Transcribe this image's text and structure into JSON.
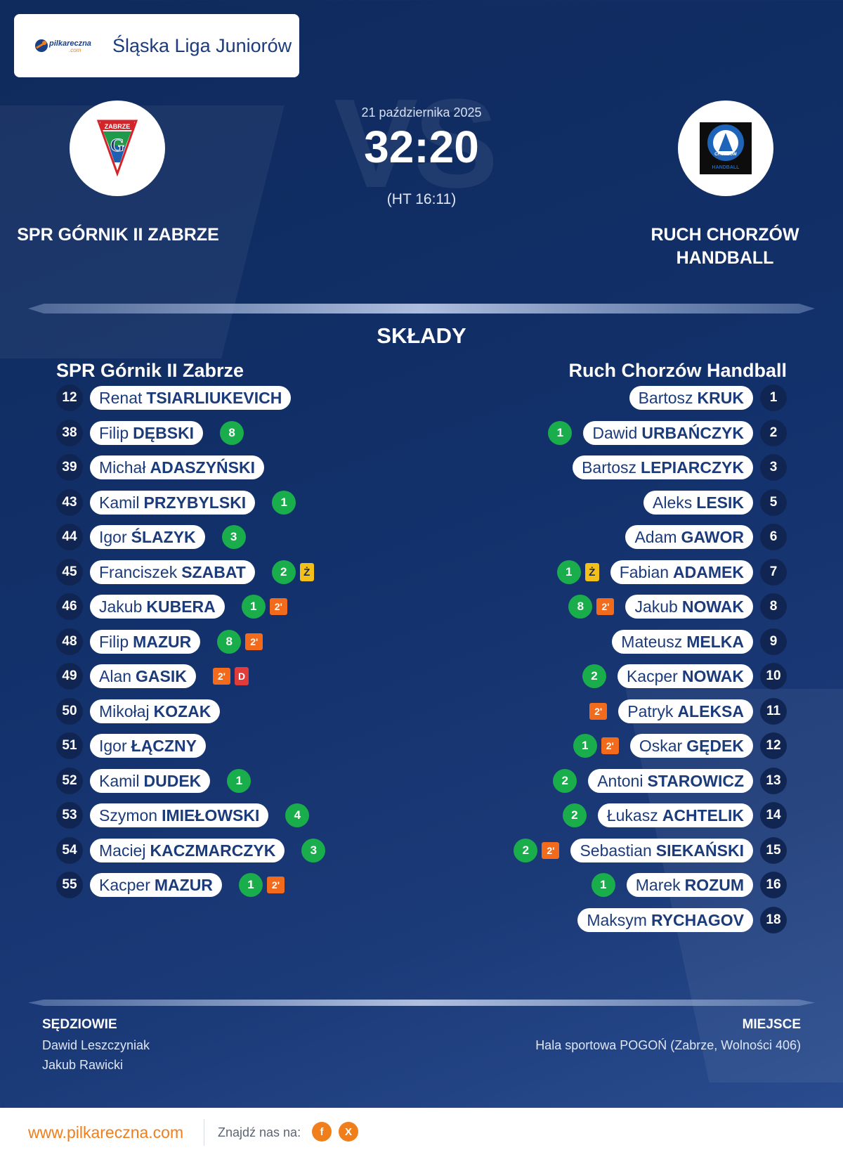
{
  "header": {
    "brand_text": "pilkareczna",
    "brand_suffix": ".com",
    "league": "Śląska Liga Juniorów"
  },
  "match": {
    "date": "21 października 2025",
    "score": "32:20",
    "halftime": "(HT 16:11)",
    "vs_watermark": "VS",
    "home_name": "SPR GÓRNIK II ZABRZE",
    "away_name": "RUCH CHORZÓW HANDBALL"
  },
  "lineups": {
    "title": "SKŁADY",
    "home_team": "SPR Górnik II Zabrze",
    "away_team": "Ruch Chorzów Handball",
    "home_players": [
      {
        "number": "12",
        "first": "Renat",
        "last": "TSIARLIUKEVICH",
        "goals": "",
        "penalty": "",
        "card": ""
      },
      {
        "number": "38",
        "first": "Filip",
        "last": "DĘBSKI",
        "goals": "8",
        "penalty": "",
        "card": ""
      },
      {
        "number": "39",
        "first": "Michał",
        "last": "ADASZYŃSKI",
        "goals": "",
        "penalty": "",
        "card": ""
      },
      {
        "number": "43",
        "first": "Kamil",
        "last": "PRZYBYLSKI",
        "goals": "1",
        "penalty": "",
        "card": ""
      },
      {
        "number": "44",
        "first": "Igor",
        "last": "ŚLAZYK",
        "goals": "3",
        "penalty": "",
        "card": ""
      },
      {
        "number": "45",
        "first": "Franciszek",
        "last": "SZABAT",
        "goals": "2",
        "penalty": "",
        "card": "Ż"
      },
      {
        "number": "46",
        "first": "Jakub",
        "last": "KUBERA",
        "goals": "1",
        "penalty": "2'",
        "card": ""
      },
      {
        "number": "48",
        "first": "Filip",
        "last": "MAZUR",
        "goals": "8",
        "penalty": "2'",
        "card": ""
      },
      {
        "number": "49",
        "first": "Alan",
        "last": "GASIK",
        "goals": "",
        "penalty": "2'",
        "card": "D"
      },
      {
        "number": "50",
        "first": "Mikołaj",
        "last": "KOZAK",
        "goals": "",
        "penalty": "",
        "card": ""
      },
      {
        "number": "51",
        "first": "Igor",
        "last": "ŁĄCZNY",
        "goals": "",
        "penalty": "",
        "card": ""
      },
      {
        "number": "52",
        "first": "Kamil",
        "last": "DUDEK",
        "goals": "1",
        "penalty": "",
        "card": ""
      },
      {
        "number": "53",
        "first": "Szymon",
        "last": "IMIEŁOWSKI",
        "goals": "4",
        "penalty": "",
        "card": ""
      },
      {
        "number": "54",
        "first": "Maciej",
        "last": "KACZMARCZYK",
        "goals": "3",
        "penalty": "",
        "card": ""
      },
      {
        "number": "55",
        "first": "Kacper",
        "last": "MAZUR",
        "goals": "1",
        "penalty": "2'",
        "card": ""
      }
    ],
    "away_players": [
      {
        "number": "1",
        "first": "Bartosz",
        "last": "KRUK",
        "goals": "",
        "penalty": "",
        "card": ""
      },
      {
        "number": "2",
        "first": "Dawid",
        "last": "URBAŃCZYK",
        "goals": "1",
        "penalty": "",
        "card": ""
      },
      {
        "number": "3",
        "first": "Bartosz",
        "last": "LEPIARCZYK",
        "goals": "",
        "penalty": "",
        "card": ""
      },
      {
        "number": "5",
        "first": "Aleks",
        "last": "LESIK",
        "goals": "",
        "penalty": "",
        "card": ""
      },
      {
        "number": "6",
        "first": "Adam",
        "last": "GAWOR",
        "goals": "",
        "penalty": "",
        "card": ""
      },
      {
        "number": "7",
        "first": "Fabian",
        "last": "ADAMEK",
        "goals": "1",
        "penalty": "",
        "card": "Ż"
      },
      {
        "number": "8",
        "first": "Jakub",
        "last": "NOWAK",
        "goals": "8",
        "penalty": "2'",
        "card": ""
      },
      {
        "number": "9",
        "first": "Mateusz",
        "last": "MELKA",
        "goals": "",
        "penalty": "",
        "card": ""
      },
      {
        "number": "10",
        "first": "Kacper",
        "last": "NOWAK",
        "goals": "2",
        "penalty": "",
        "card": ""
      },
      {
        "number": "11",
        "first": "Patryk",
        "last": "ALEKSA",
        "goals": "",
        "penalty": "2'",
        "card": ""
      },
      {
        "number": "12",
        "first": "Oskar",
        "last": "GĘDEK",
        "goals": "1",
        "penalty": "2'",
        "card": ""
      },
      {
        "number": "13",
        "first": "Antoni",
        "last": "STAROWICZ",
        "goals": "2",
        "penalty": "",
        "card": ""
      },
      {
        "number": "14",
        "first": "Łukasz",
        "last": "ACHTELIK",
        "goals": "2",
        "penalty": "",
        "card": ""
      },
      {
        "number": "15",
        "first": "Sebastian",
        "last": "SIEKAŃSKI",
        "goals": "2",
        "penalty": "2'",
        "card": ""
      },
      {
        "number": "16",
        "first": "Marek",
        "last": "ROZUM",
        "goals": "1",
        "penalty": "",
        "card": ""
      },
      {
        "number": "18",
        "first": "Maksym",
        "last": "RYCHAGOV",
        "goals": "",
        "penalty": "",
        "card": ""
      }
    ]
  },
  "officials": {
    "referees_label": "SĘDZIOWIE",
    "referees": [
      "Dawid Leszczyniak",
      "Jakub Rawicki"
    ],
    "venue_label": "MIEJSCE",
    "venue": "Hala sportowa POGOŃ (Zabrze, Wolności 406)"
  },
  "footer": {
    "site": "www.pilkareczna.com",
    "find_us": "Znajdź nas na:",
    "social": [
      {
        "icon": "facebook-icon",
        "glyph": "f"
      },
      {
        "icon": "x-icon",
        "glyph": "X"
      }
    ]
  },
  "colors": {
    "background": "#12306a",
    "accent_orange": "#f07e1b",
    "goal_green": "#1aad4b",
    "penalty_orange": "#f26a1b",
    "yellow_card": "#f3c019",
    "red_card": "#e23b3b",
    "number_circle": "#112552"
  },
  "logos": {
    "home_logo_text": "ZABRZE",
    "away_logo_text": "CHORZÓW",
    "away_logo_sub": "HANDBALL"
  }
}
